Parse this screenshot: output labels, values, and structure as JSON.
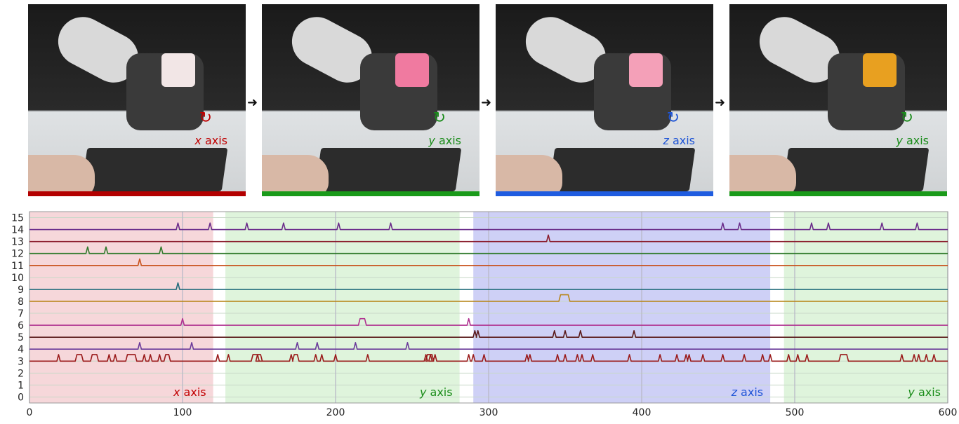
{
  "photos": [
    {
      "axis_var": "x",
      "axis_word": " axis",
      "color": "#c00000",
      "bar_color": "#b30000",
      "cube_color": "#f2e6e6"
    },
    {
      "axis_var": "y",
      "axis_word": " axis",
      "color": "#1a8c1a",
      "bar_color": "#1a9a1a",
      "cube_color": "#f07aa0"
    },
    {
      "axis_var": "z",
      "axis_word": " axis",
      "color": "#1f55d6",
      "bar_color": "#1f5ce0",
      "cube_color": "#f4a0b8"
    },
    {
      "axis_var": "y",
      "axis_word": " axis",
      "color": "#1a8c1a",
      "bar_color": "#1a9a1a",
      "cube_color": "#e8a020"
    }
  ],
  "arrow_glyph": "➜",
  "chart_data": {
    "type": "line",
    "title": "",
    "xlabel": "",
    "ylabel": "",
    "xlim": [
      0,
      600
    ],
    "ylim": [
      -0.5,
      15.5
    ],
    "xticks": [
      0,
      100,
      200,
      300,
      400,
      500,
      600
    ],
    "yticks": [
      0,
      1,
      2,
      3,
      4,
      5,
      6,
      7,
      8,
      9,
      10,
      11,
      12,
      13,
      14,
      15
    ],
    "grid": true,
    "regions": [
      {
        "x0": 0,
        "x1": 120,
        "color": "#f4d0d4",
        "label_var": "x",
        "label_word": " axis",
        "label_color": "#c00000"
      },
      {
        "x0": 128,
        "x1": 281,
        "color": "#d9f2d6",
        "label_var": "y",
        "label_word": " axis",
        "label_color": "#1a8c1a"
      },
      {
        "x0": 290,
        "x1": 484,
        "color": "#c6c8f4",
        "label_var": "z",
        "label_word": " axis",
        "label_color": "#1f55d6"
      },
      {
        "x0": 493,
        "x1": 600,
        "color": "#d9f2d6",
        "label_var": "y",
        "label_word": " axis",
        "label_color": "#1a8c1a"
      }
    ],
    "series": [
      {
        "level": 14,
        "color": "#6a2c8a",
        "peaks": [
          97,
          118,
          142,
          166,
          202,
          236,
          453,
          464,
          511,
          522,
          557,
          580
        ]
      },
      {
        "level": 13,
        "color": "#8a1a2a",
        "peaks": [
          339
        ]
      },
      {
        "level": 12,
        "color": "#2f7a2a",
        "peaks": [
          38,
          50,
          86
        ]
      },
      {
        "level": 11,
        "color": "#c8501a",
        "peaks": [
          72
        ]
      },
      {
        "level": 9,
        "color": "#1f6a7a",
        "peaks": [
          97
        ]
      },
      {
        "level": 8,
        "color": "#b8861a",
        "plateaus": [
          [
            347,
            352
          ]
        ]
      },
      {
        "level": 6,
        "color": "#b03090",
        "peaks": [
          100,
          287
        ],
        "plateaus": [
          [
            216,
            219
          ]
        ]
      },
      {
        "level": 5,
        "color": "#5a1a1a",
        "peaks": [
          291,
          293,
          343,
          350,
          360,
          395
        ]
      },
      {
        "level": 4,
        "color": "#6a3a9a",
        "peaks": [
          72,
          106,
          175,
          188,
          213,
          247
        ]
      },
      {
        "level": 3,
        "color": "#9a1a1a",
        "peaks": [
          19,
          52,
          56,
          75,
          79,
          85,
          123,
          130,
          149,
          171,
          187,
          191,
          200,
          221,
          259,
          262,
          265,
          287,
          290,
          297,
          325,
          327,
          345,
          350,
          358,
          361,
          368,
          392,
          412,
          423,
          429,
          431,
          440,
          453,
          467,
          479,
          484,
          496,
          502,
          508,
          570,
          578,
          581,
          586,
          591
        ],
        "plateaus": [
          [
            31,
            34
          ],
          [
            41,
            44
          ],
          [
            64,
            69
          ],
          [
            89,
            91
          ],
          [
            146,
            151
          ],
          [
            173,
            175
          ],
          [
            260,
            263
          ],
          [
            530,
            534
          ]
        ]
      }
    ]
  }
}
